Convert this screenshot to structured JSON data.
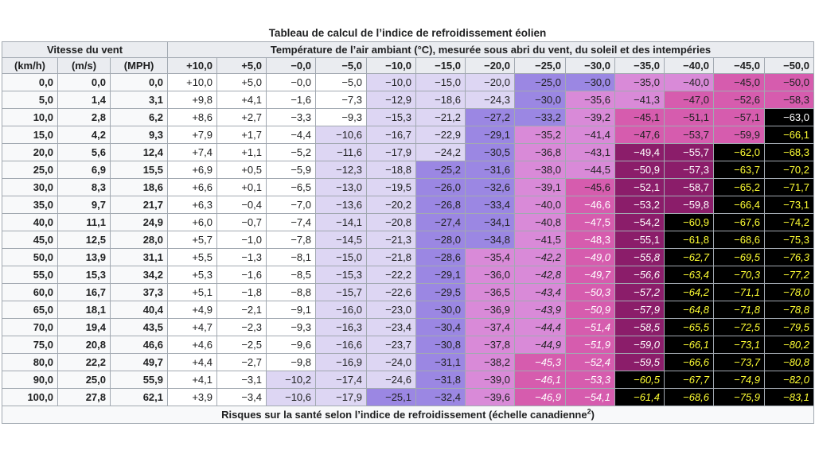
{
  "caption": "Tableau de calcul de l’indice de refroidissement éolien",
  "header": {
    "wind_group": "Vitesse du vent",
    "temp_group": "Température de l’air ambiant (°C), mesurée sous abri du vent, du soleil et des intempéries",
    "wind_units": [
      "(km/h)",
      "(m/s)",
      "(MPH)"
    ],
    "temperatures": [
      "+10,0",
      "+5,0",
      "−0,0",
      "−5,0",
      "−10,0",
      "−15,0",
      "−20,0",
      "−25,0",
      "−30,0",
      "−35,0",
      "−40,0",
      "−45,0",
      "−50,0"
    ]
  },
  "rows": [
    {
      "kmh": "0,0",
      "ms": "0,0",
      "mph": "0,0",
      "values": [
        "+10,0",
        "+5,0",
        "−0,0",
        "−5,0",
        "−10,0",
        "−15,0",
        "−20,0",
        "−25,0",
        "−30,0",
        "−35,0",
        "−40,0",
        "−45,0",
        "−50,0"
      ]
    },
    {
      "kmh": "5,0",
      "ms": "1,4",
      "mph": "3,1",
      "values": [
        "+9,8",
        "+4,1",
        "−1,6",
        "−7,3",
        "−12,9",
        "−18,6",
        "−24,3",
        "−30,0",
        "−35,6",
        "−41,3",
        "−47,0",
        "−52,6",
        "−58,3"
      ]
    },
    {
      "kmh": "10,0",
      "ms": "2,8",
      "mph": "6,2",
      "values": [
        "+8,6",
        "+2,7",
        "−3,3",
        "−9,3",
        "−15,3",
        "−21,2",
        "−27,2",
        "−33,2",
        "−39,2",
        "−45,1",
        "−51,1",
        "−57,1",
        "−63,0"
      ]
    },
    {
      "kmh": "15,0",
      "ms": "4,2",
      "mph": "9,3",
      "values": [
        "+7,9",
        "+1,7",
        "−4,4",
        "−10,6",
        "−16,7",
        "−22,9",
        "−29,1",
        "−35,2",
        "−41,4",
        "−47,6",
        "−53,7",
        "−59,9",
        "−66,1"
      ]
    },
    {
      "kmh": "20,0",
      "ms": "5,6",
      "mph": "12,4",
      "values": [
        "+7,4",
        "+1,1",
        "−5,2",
        "−11,6",
        "−17,9",
        "−24,2",
        "−30,5",
        "−36,8",
        "−43,1",
        "−49,4",
        "−55,7",
        "−62,0",
        "−68,3"
      ]
    },
    {
      "kmh": "25,0",
      "ms": "6,9",
      "mph": "15,5",
      "values": [
        "+6,9",
        "+0,5",
        "−5,9",
        "−12,3",
        "−18,8",
        "−25,2",
        "−31,6",
        "−38,0",
        "−44,5",
        "−50,9",
        "−57,3",
        "−63,7",
        "−70,2"
      ]
    },
    {
      "kmh": "30,0",
      "ms": "8,3",
      "mph": "18,6",
      "values": [
        "+6,6",
        "+0,1",
        "−6,5",
        "−13,0",
        "−19,5",
        "−26,0",
        "−32,6",
        "−39,1",
        "−45,6",
        "−52,1",
        "−58,7",
        "−65,2",
        "−71,7"
      ]
    },
    {
      "kmh": "35,0",
      "ms": "9,7",
      "mph": "21,7",
      "values": [
        "+6,3",
        "−0,4",
        "−7,0",
        "−13,6",
        "−20,2",
        "−26,8",
        "−33,4",
        "−40,0",
        "−46,6",
        "−53,2",
        "−59,8",
        "−66,4",
        "−73,1"
      ]
    },
    {
      "kmh": "40,0",
      "ms": "11,1",
      "mph": "24,9",
      "values": [
        "+6,0",
        "−0,7",
        "−7,4",
        "−14,1",
        "−20,8",
        "−27,4",
        "−34,1",
        "−40,8",
        "−47,5",
        "−54,2",
        "−60,9",
        "−67,6",
        "−74,2"
      ]
    },
    {
      "kmh": "45,0",
      "ms": "12,5",
      "mph": "28,0",
      "values": [
        "+5,7",
        "−1,0",
        "−7,8",
        "−14,5",
        "−21,3",
        "−28,0",
        "−34,8",
        "−41,5",
        "−48,3",
        "−55,1",
        "−61,8",
        "−68,6",
        "−75,3"
      ]
    },
    {
      "kmh": "50,0",
      "ms": "13,9",
      "mph": "31,1",
      "values": [
        "+5,5",
        "−1,3",
        "−8,1",
        "−15,0",
        "−21,8",
        "−28,6",
        "−35,4",
        "−42,2",
        "−49,0",
        "−55,8",
        "−62,7",
        "−69,5",
        "−76,3"
      ]
    },
    {
      "kmh": "55,0",
      "ms": "15,3",
      "mph": "34,2",
      "values": [
        "+5,3",
        "−1,6",
        "−8,5",
        "−15,3",
        "−22,2",
        "−29,1",
        "−36,0",
        "−42,8",
        "−49,7",
        "−56,6",
        "−63,4",
        "−70,3",
        "−77,2"
      ]
    },
    {
      "kmh": "60,0",
      "ms": "16,7",
      "mph": "37,3",
      "values": [
        "+5,1",
        "−1,8",
        "−8,8",
        "−15,7",
        "−22,6",
        "−29,5",
        "−36,5",
        "−43,4",
        "−50,3",
        "−57,2",
        "−64,2",
        "−71,1",
        "−78,0"
      ]
    },
    {
      "kmh": "65,0",
      "ms": "18,1",
      "mph": "40,4",
      "values": [
        "+4,9",
        "−2,1",
        "−9,1",
        "−16,0",
        "−23,0",
        "−30,0",
        "−36,9",
        "−43,9",
        "−50,9",
        "−57,9",
        "−64,8",
        "−71,8",
        "−78,8"
      ]
    },
    {
      "kmh": "70,0",
      "ms": "19,4",
      "mph": "43,5",
      "values": [
        "+4,7",
        "−2,3",
        "−9,3",
        "−16,3",
        "−23,4",
        "−30,4",
        "−37,4",
        "−44,4",
        "−51,4",
        "−58,5",
        "−65,5",
        "−72,5",
        "−79,5"
      ]
    },
    {
      "kmh": "75,0",
      "ms": "20,8",
      "mph": "46,6",
      "values": [
        "+4,6",
        "−2,5",
        "−9,6",
        "−16,6",
        "−23,7",
        "−30,8",
        "−37,8",
        "−44,9",
        "−51,9",
        "−59,0",
        "−66,1",
        "−73,1",
        "−80,2"
      ]
    },
    {
      "kmh": "80,0",
      "ms": "22,2",
      "mph": "49,7",
      "values": [
        "+4,4",
        "−2,7",
        "−9,8",
        "−16,9",
        "−24,0",
        "−31,1",
        "−38,2",
        "−45,3",
        "−52,4",
        "−59,5",
        "−66,6",
        "−73,7",
        "−80,8"
      ]
    },
    {
      "kmh": "90,0",
      "ms": "25,0",
      "mph": "55,9",
      "values": [
        "+4,1",
        "−3,1",
        "−10,2",
        "−17,4",
        "−24,6",
        "−31,8",
        "−39,0",
        "−46,1",
        "−53,3",
        "−60,5",
        "−67,7",
        "−74,9",
        "−82,0"
      ]
    },
    {
      "kmh": "100,0",
      "ms": "27,8",
      "mph": "62,1",
      "values": [
        "+3,9",
        "−3,4",
        "−10,6",
        "−17,9",
        "−25,1",
        "−32,4",
        "−39,6",
        "−46,9",
        "−54,1",
        "−61,4",
        "−68,6",
        "−75,9",
        "−83,1"
      ]
    }
  ],
  "footer": {
    "text": "Risques sur la santé selon l’indice de refroidissement (échelle canadienne",
    "sup": "2",
    "close": ")"
  },
  "colors": {
    "risk_none": "#ffffff",
    "risk_low": "#ddd6f3",
    "risk_moderate": "#9b87e3",
    "risk_high": "#d98ad8",
    "risk_very_high": "#d65cae",
    "risk_severe": "#8b1d6a",
    "risk_extreme": "#000000",
    "text_extreme": "#ffff33"
  }
}
